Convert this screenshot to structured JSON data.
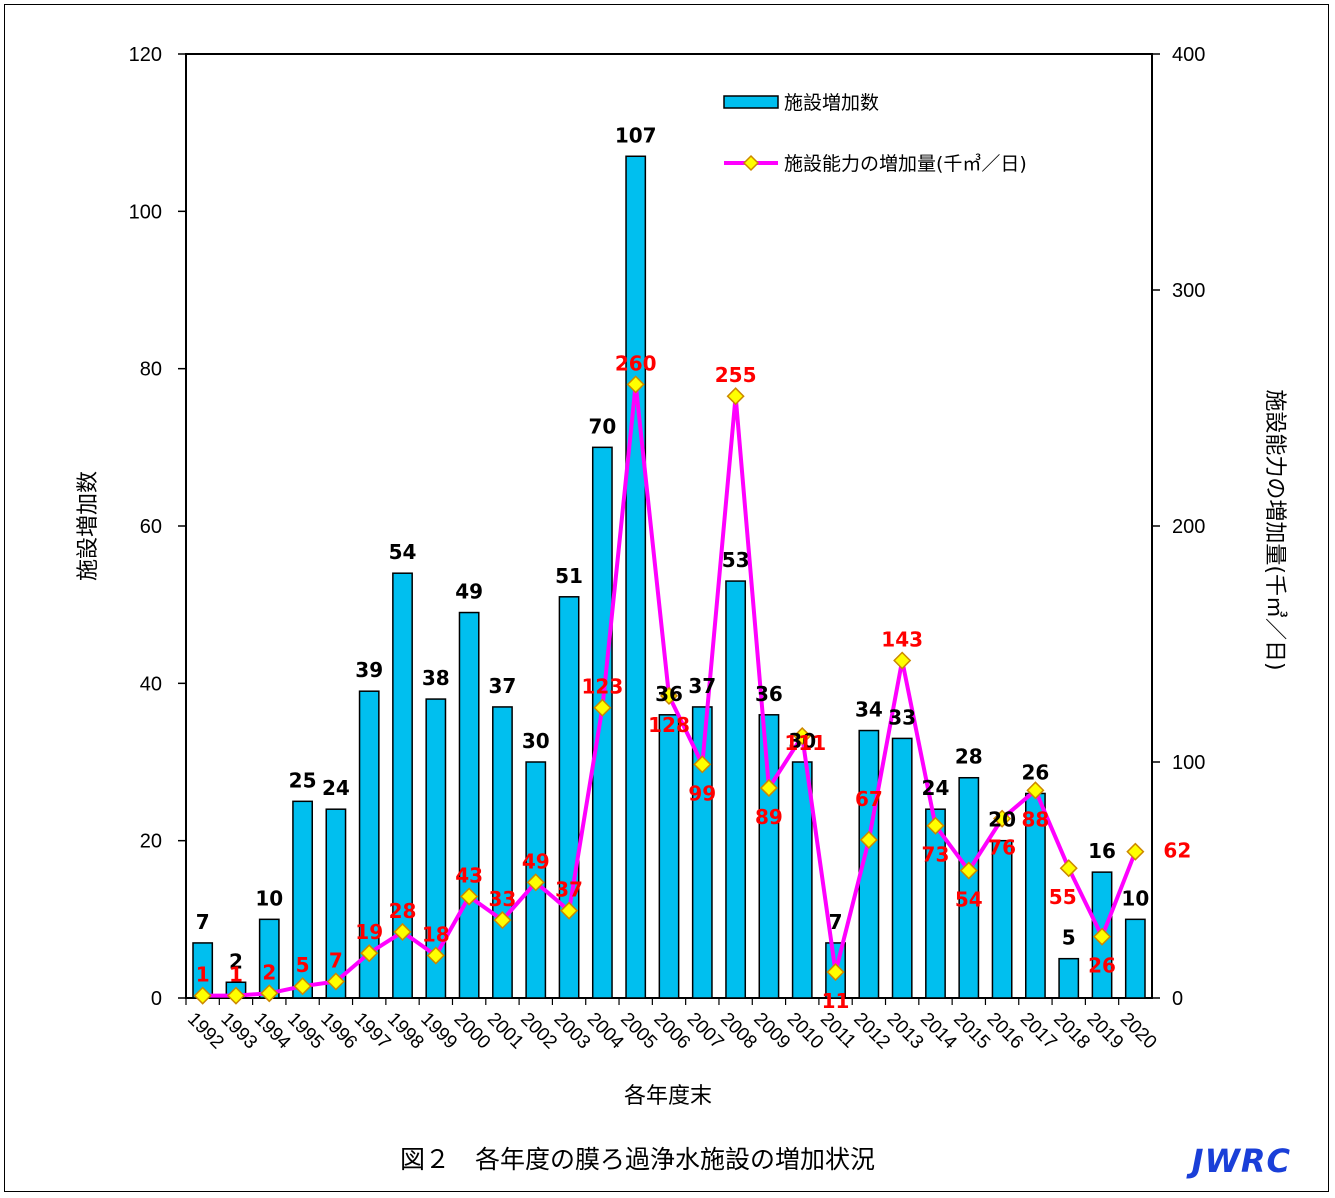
{
  "caption": "図２　各年度の膜ろ過浄水施設の増加状況",
  "logo": "JWRC",
  "colors": {
    "bar": "#00bfef",
    "line": "#ff00ff",
    "marker_fill": "#ffff00",
    "marker_stroke": "#cc8800",
    "line_label": "#ff0000"
  },
  "chart_data": {
    "type": "bar",
    "categories": [
      "1992",
      "1993",
      "1994",
      "1995",
      "1996",
      "1997",
      "1998",
      "1999",
      "2000",
      "2001",
      "2002",
      "2003",
      "2004",
      "2005",
      "2006",
      "2007",
      "2008",
      "2009",
      "2010",
      "2011",
      "2012",
      "2013",
      "2014",
      "2015",
      "2016",
      "2017",
      "2018",
      "2019",
      "2020"
    ],
    "series": [
      {
        "name": "施設増加数",
        "type": "bar",
        "axis": "left",
        "values": [
          7,
          2,
          10,
          25,
          24,
          39,
          54,
          38,
          49,
          37,
          30,
          51,
          70,
          107,
          36,
          37,
          53,
          36,
          30,
          7,
          34,
          33,
          24,
          28,
          20,
          26,
          5,
          16,
          10
        ]
      },
      {
        "name": "施設能力の増加量(千㎥／日)",
        "type": "line",
        "axis": "right",
        "values": [
          1,
          1,
          2,
          5,
          7,
          19,
          28,
          18,
          43,
          33,
          49,
          37,
          123,
          260,
          128,
          99,
          255,
          89,
          111,
          11,
          67,
          143,
          73,
          54,
          76,
          88,
          55,
          26,
          62
        ]
      }
    ],
    "xlabel": "各年度末",
    "ylabel": "施設増加数",
    "y2label": "施設能力の増加量(千㎥／日)",
    "ylim": [
      0,
      120
    ],
    "y2lim": [
      0,
      400
    ],
    "yticks": [
      0,
      20,
      40,
      60,
      80,
      100,
      120
    ],
    "y2ticks": [
      0,
      100,
      200,
      300,
      400
    ],
    "grid": false,
    "legend": "top-center"
  }
}
